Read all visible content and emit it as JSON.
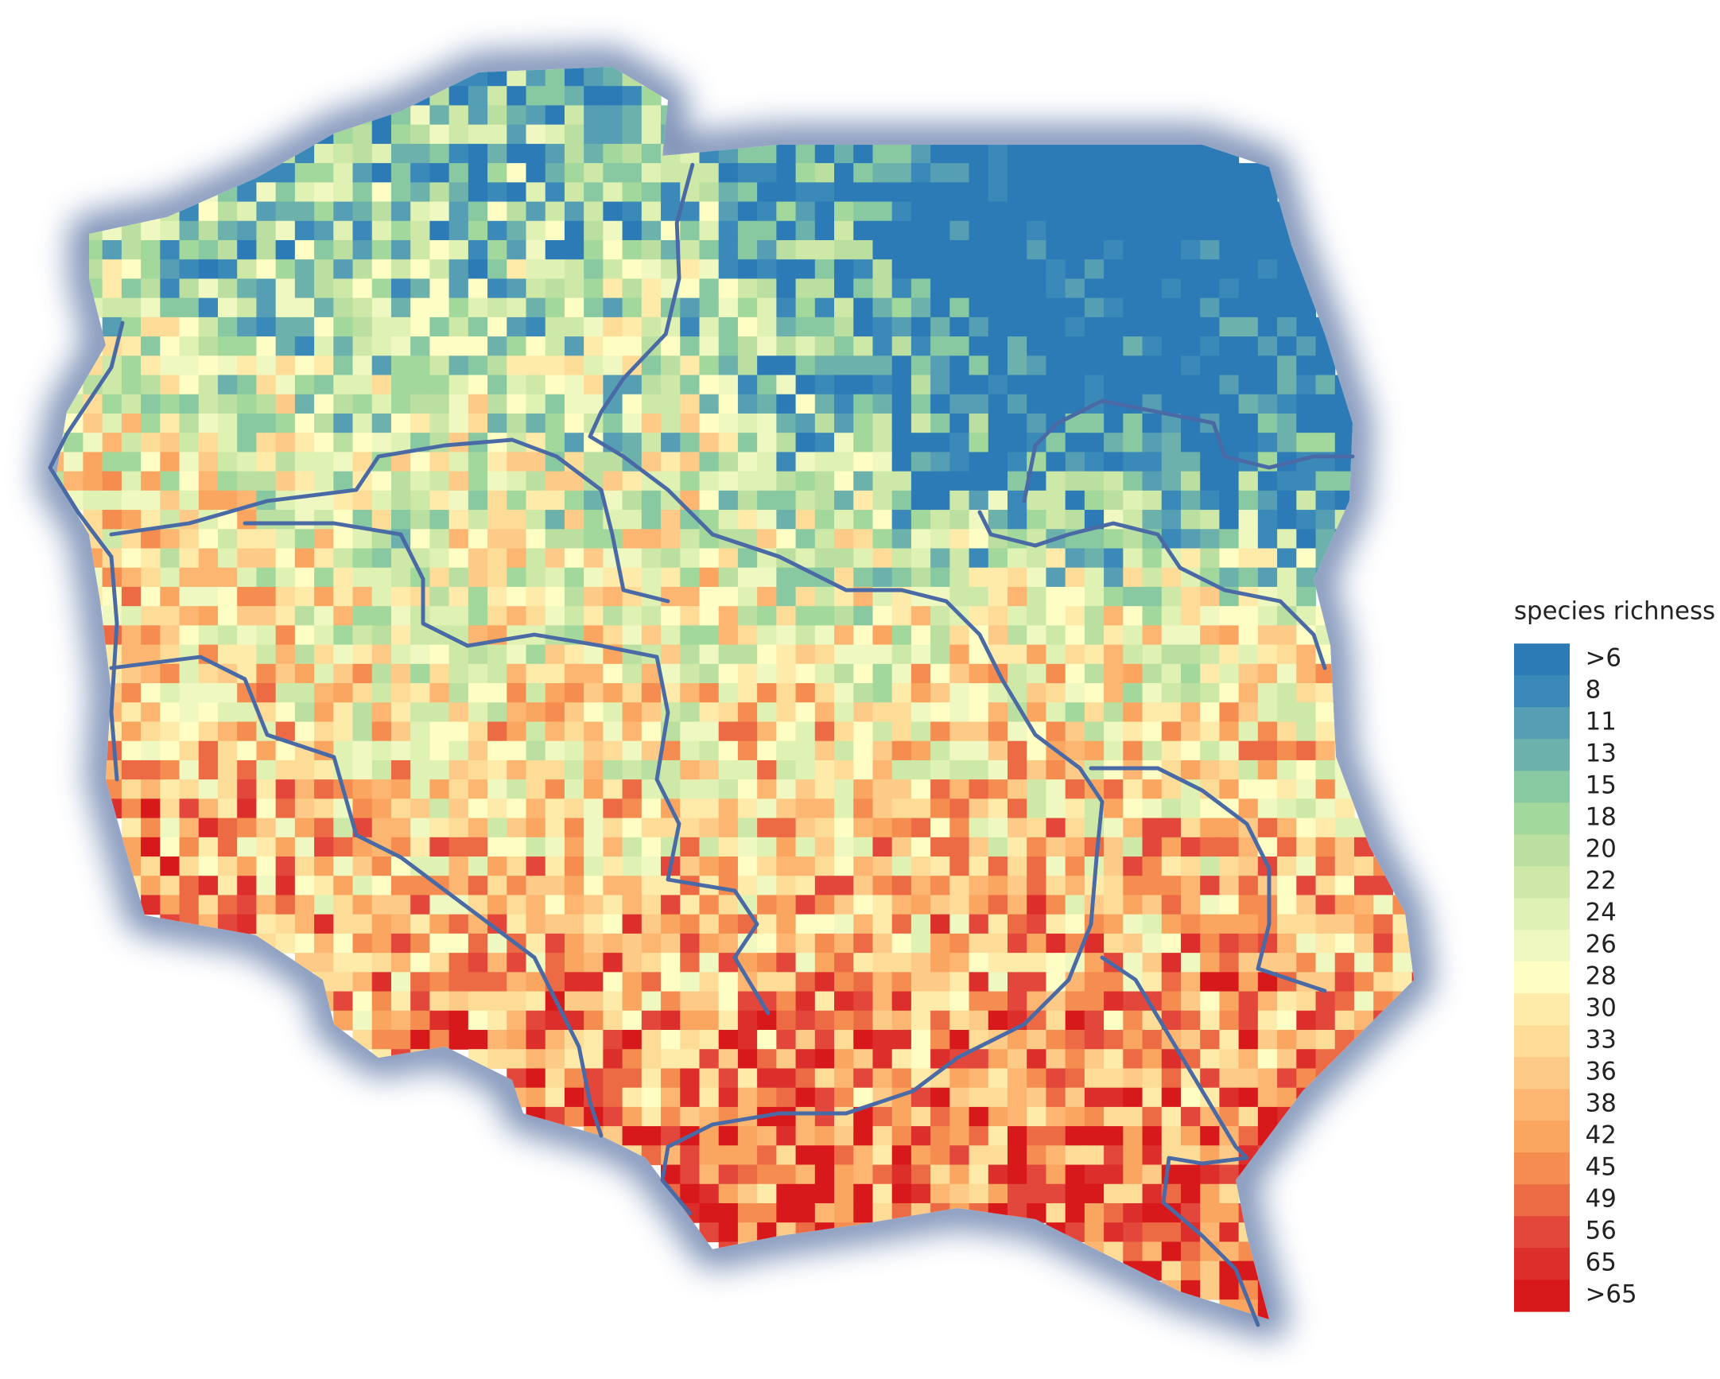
{
  "legend": {
    "title": "species richness",
    "items": [
      {
        "label": ">6",
        "color": "#2c7bb6"
      },
      {
        "label": "8",
        "color": "#3b89b8"
      },
      {
        "label": "11",
        "color": "#559eb4"
      },
      {
        "label": "13",
        "color": "#6cb1ab"
      },
      {
        "label": "15",
        "color": "#88c9a2"
      },
      {
        "label": "18",
        "color": "#a3d89c"
      },
      {
        "label": "20",
        "color": "#badfa0"
      },
      {
        "label": "22",
        "color": "#cde8a7"
      },
      {
        "label": "24",
        "color": "#dff1b3"
      },
      {
        "label": "26",
        "color": "#eff8c0"
      },
      {
        "label": "28",
        "color": "#fefdc4"
      },
      {
        "label": "30",
        "color": "#feeaa9"
      },
      {
        "label": "33",
        "color": "#fddc98"
      },
      {
        "label": "36",
        "color": "#fdca87"
      },
      {
        "label": "38",
        "color": "#fdb672"
      },
      {
        "label": "42",
        "color": "#fba660"
      },
      {
        "label": "45",
        "color": "#f58c50"
      },
      {
        "label": "49",
        "color": "#ec6b45"
      },
      {
        "label": "56",
        "color": "#e3463a"
      },
      {
        "label": "65",
        "color": "#dc2e2b"
      },
      {
        "label": ">65",
        "color": "#d7191c"
      }
    ]
  }
}
